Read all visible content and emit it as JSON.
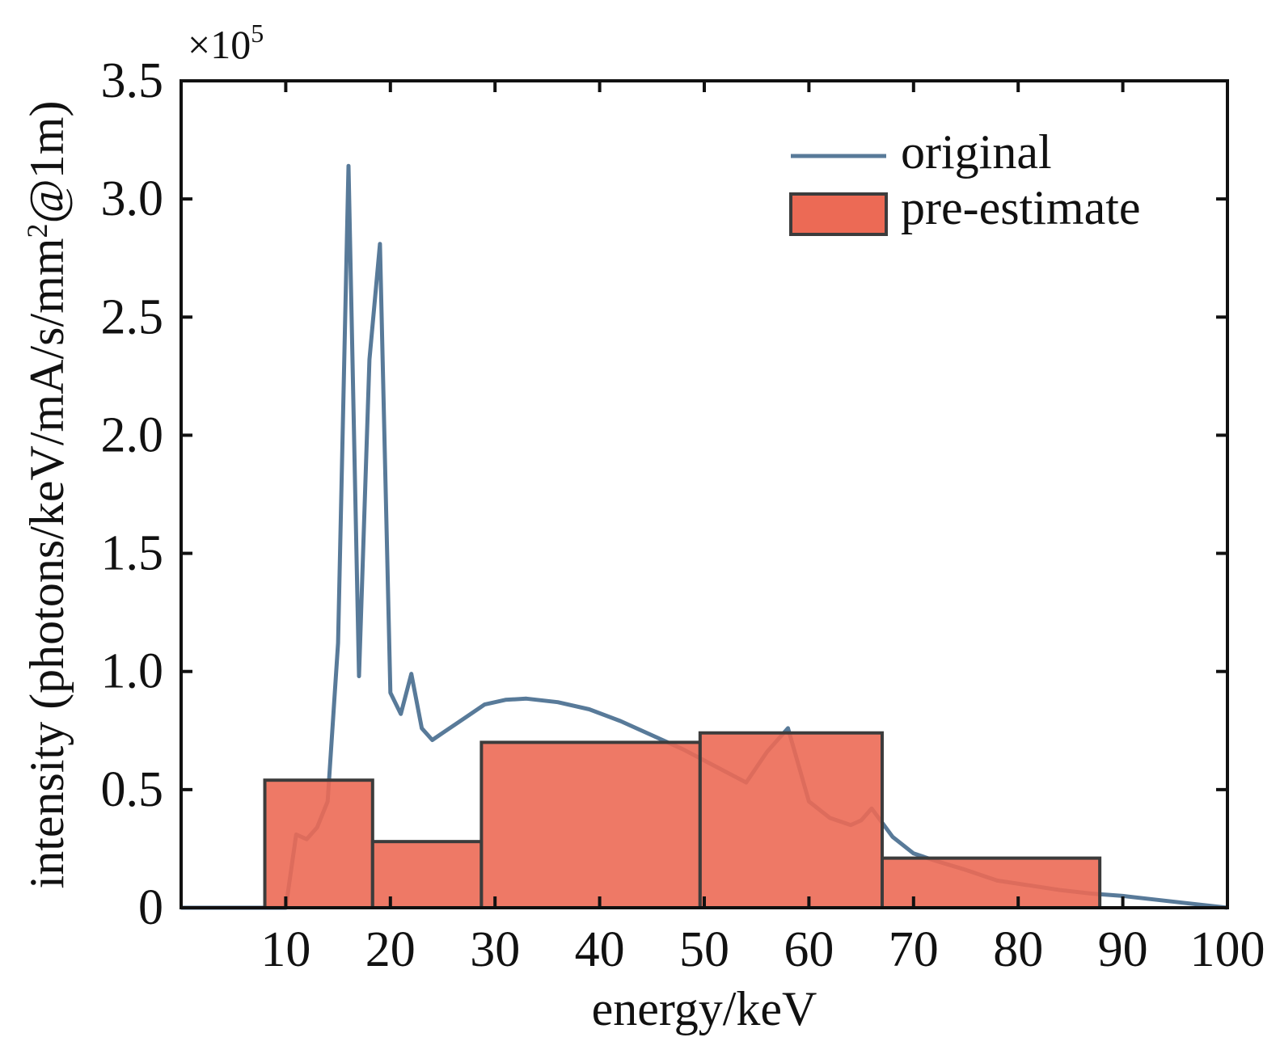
{
  "chart_data": {
    "type": "line",
    "multiplier": {
      "base": "×10",
      "exponent": "5"
    },
    "xlabel": "energy/keV",
    "ylabel": "intensity (photons/keV/mA/s/mm",
    "ylabel_sup": "2",
    "ylabel_tail": "@1m)",
    "xlim": [
      0,
      100
    ],
    "ylim": [
      0,
      3.5
    ],
    "x_ticks": [
      {
        "value": 10,
        "label": "10"
      },
      {
        "value": 20,
        "label": "20"
      },
      {
        "value": 30,
        "label": "30"
      },
      {
        "value": 40,
        "label": "40"
      },
      {
        "value": 50,
        "label": "50"
      },
      {
        "value": 60,
        "label": "60"
      },
      {
        "value": 70,
        "label": "70"
      },
      {
        "value": 80,
        "label": "80"
      },
      {
        "value": 90,
        "label": "90"
      },
      {
        "value": 100,
        "label": "100"
      }
    ],
    "y_ticks": [
      {
        "value": 0,
        "label": "0"
      },
      {
        "value": 0.5,
        "label": "0.5"
      },
      {
        "value": 1.0,
        "label": "1.0"
      },
      {
        "value": 1.5,
        "label": "1.5"
      },
      {
        "value": 2.0,
        "label": "2.0"
      },
      {
        "value": 2.5,
        "label": "2.5"
      },
      {
        "value": 3.0,
        "label": "3.0"
      },
      {
        "value": 3.5,
        "label": "3.5"
      }
    ],
    "grid": false,
    "legend_position": "top-right",
    "series": [
      {
        "name": "original",
        "kind": "line",
        "color": "#587a99",
        "points": [
          [
            0,
            0
          ],
          [
            4,
            0
          ],
          [
            10,
            0
          ],
          [
            11,
            0.31
          ],
          [
            12,
            0.29
          ],
          [
            13,
            0.34
          ],
          [
            14,
            0.45
          ],
          [
            15,
            1.12
          ],
          [
            16,
            3.14
          ],
          [
            17,
            0.98
          ],
          [
            18,
            2.32
          ],
          [
            19,
            2.81
          ],
          [
            20,
            0.91
          ],
          [
            21,
            0.82
          ],
          [
            22,
            0.99
          ],
          [
            23,
            0.76
          ],
          [
            24,
            0.71
          ],
          [
            25,
            0.74
          ],
          [
            27,
            0.8
          ],
          [
            29,
            0.86
          ],
          [
            31,
            0.88
          ],
          [
            33,
            0.885
          ],
          [
            36,
            0.87
          ],
          [
            39,
            0.84
          ],
          [
            42,
            0.79
          ],
          [
            45,
            0.73
          ],
          [
            48,
            0.67
          ],
          [
            51,
            0.6
          ],
          [
            54,
            0.53
          ],
          [
            56,
            0.66
          ],
          [
            58,
            0.76
          ],
          [
            60,
            0.45
          ],
          [
            62,
            0.38
          ],
          [
            64,
            0.35
          ],
          [
            65,
            0.37
          ],
          [
            66,
            0.42
          ],
          [
            68,
            0.3
          ],
          [
            70,
            0.23
          ],
          [
            72,
            0.2
          ],
          [
            75,
            0.16
          ],
          [
            78,
            0.115
          ],
          [
            81,
            0.095
          ],
          [
            84,
            0.075
          ],
          [
            87,
            0.06
          ],
          [
            90,
            0.05
          ],
          [
            93,
            0.035
          ],
          [
            96,
            0.02
          ],
          [
            100,
            0
          ]
        ]
      },
      {
        "name": "pre-estimate",
        "kind": "bar",
        "color": "#ec6a55",
        "bins": [
          {
            "start": 8,
            "end": 18.3,
            "value": 0.54
          },
          {
            "start": 18.3,
            "end": 28.7,
            "value": 0.28
          },
          {
            "start": 28.7,
            "end": 49.6,
            "value": 0.7
          },
          {
            "start": 49.6,
            "end": 67,
            "value": 0.74
          },
          {
            "start": 67,
            "end": 87.8,
            "value": 0.21
          }
        ]
      }
    ]
  }
}
